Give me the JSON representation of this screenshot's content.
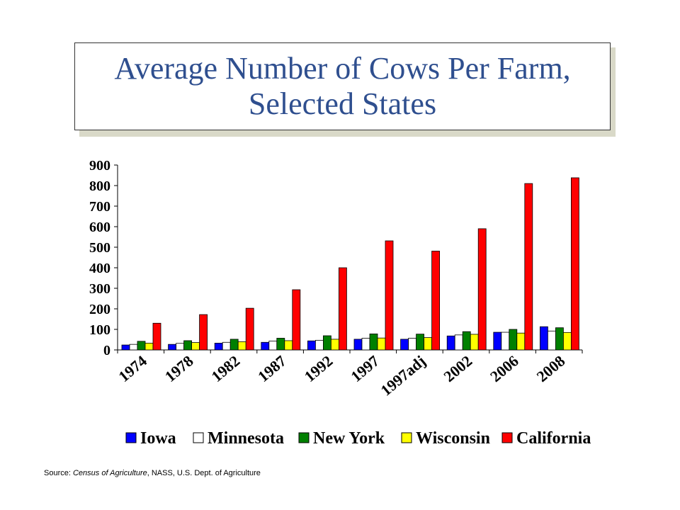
{
  "title": {
    "line1": "Average Number of Cows Per Farm,",
    "line2": "Selected States"
  },
  "source": {
    "prefix": "Source: ",
    "publication": "Census of Agriculture",
    "suffix": ", NASS, U.S. Dept. of Agriculture"
  },
  "chart_data": {
    "type": "bar",
    "title": "Average Number of Cows Per Farm, Selected States",
    "xlabel": "",
    "ylabel": "",
    "ylim": [
      0,
      900
    ],
    "yticks": [
      0,
      100,
      200,
      300,
      400,
      500,
      600,
      700,
      800,
      900
    ],
    "grid": false,
    "legend_position": "bottom",
    "categories": [
      "1974",
      "1978",
      "1982",
      "1987",
      "1992",
      "1997",
      "1997adj",
      "2002",
      "2006",
      "2008"
    ],
    "series": [
      {
        "name": "Iowa",
        "color": "#0000ff",
        "values": [
          24,
          27,
          33,
          37,
          44,
          52,
          52,
          68,
          86,
          113
        ]
      },
      {
        "name": "Minnesota",
        "color": "#ffffff",
        "values": [
          27,
          32,
          37,
          43,
          47,
          57,
          57,
          73,
          86,
          92
        ]
      },
      {
        "name": "New York",
        "color": "#008000",
        "values": [
          42,
          45,
          52,
          57,
          69,
          78,
          77,
          89,
          100,
          108
        ]
      },
      {
        "name": "Wisconsin",
        "color": "#ffff00",
        "values": [
          33,
          36,
          40,
          45,
          52,
          58,
          60,
          76,
          82,
          85
        ]
      },
      {
        "name": "California",
        "color": "#ff0000",
        "values": [
          130,
          172,
          203,
          293,
          400,
          531,
          481,
          590,
          810,
          838
        ]
      }
    ]
  }
}
